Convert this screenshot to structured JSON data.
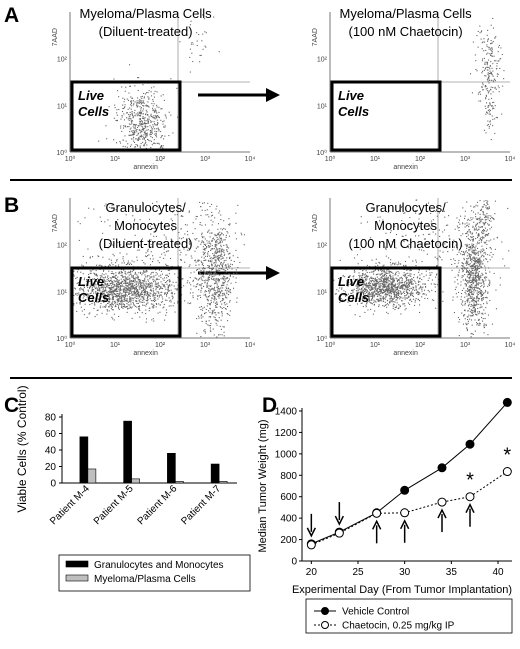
{
  "panels": {
    "A": {
      "label": "A"
    },
    "B": {
      "label": "B"
    },
    "C": {
      "label": "C"
    },
    "D": {
      "label": "D"
    }
  },
  "flow": {
    "gate_label_1": "Live",
    "gate_label_2": "Cells",
    "x_axis_label": "annexin",
    "y_axis_label": "7AAD",
    "x_ticks": [
      "10⁰",
      "10¹",
      "10²",
      "10³",
      "10⁴"
    ],
    "y_ticks": [
      "10⁰",
      "10¹",
      "10²"
    ],
    "plots": [
      {
        "id": "A-left",
        "title1": "Myeloma/Plasma Cells",
        "title2": "(Diluent-treated)"
      },
      {
        "id": "A-right",
        "title1": "Myeloma/Plasma Cells",
        "title2": "(100 nM Chaetocin)"
      },
      {
        "id": "B-left",
        "title1": "Granulocytes/",
        "title2": "Monocytes",
        "title3": "(Diluent-treated)"
      },
      {
        "id": "B-right",
        "title1": "Granulocytes/",
        "title2": "Monocytes",
        "title3": "(100 nM Chaetocin)"
      }
    ]
  },
  "chart_data": [
    {
      "type": "bar",
      "panel": "C",
      "categories": [
        "Patient M-4",
        "Patient M-5",
        "Patient M-6",
        "Patient M-7"
      ],
      "series": [
        {
          "name": "Granulocytes and Monocytes",
          "values": [
            56,
            75,
            36,
            23
          ],
          "color": "#000000"
        },
        {
          "name": "Myeloma/Plasma Cells",
          "values": [
            17,
            5,
            2,
            2
          ],
          "color": "#bfbfbf"
        }
      ],
      "ylabel": "Viable Cells (% Control)",
      "ylim": [
        0,
        80
      ],
      "yticks": [
        0,
        20,
        40,
        60,
        80
      ],
      "legend": "bottom"
    },
    {
      "type": "line",
      "panel": "D",
      "series": [
        {
          "name": "Vehicle Control",
          "x": [
            20,
            23,
            27,
            30,
            34,
            37,
            41
          ],
          "y": [
            160,
            270,
            450,
            660,
            870,
            1090,
            1480
          ],
          "marker": "filled-circle",
          "line": "solid"
        },
        {
          "name": "Chaetocin, 0.25 mg/kg IP",
          "x": [
            20,
            23,
            27,
            30,
            34,
            37,
            41
          ],
          "y": [
            150,
            260,
            445,
            450,
            550,
            600,
            835
          ],
          "marker": "open-circle",
          "line": "dotted"
        }
      ],
      "xlabel": "Experimental Day (From Tumor Implantation)",
      "ylabel": "Median Tumor Weight (mg)",
      "xlim": [
        19,
        41.5
      ],
      "ylim": [
        0,
        1400
      ],
      "xticks": [
        20,
        25,
        30,
        35,
        40
      ],
      "yticks": [
        0,
        200,
        400,
        600,
        800,
        1000,
        1200,
        1400
      ],
      "arrows_down_days": [
        20,
        23
      ],
      "arrows_up_days": [
        27,
        30,
        34,
        37
      ],
      "significance": [
        {
          "x": 37,
          "label": "*"
        },
        {
          "x": 41,
          "label": "*"
        }
      ],
      "legend": "bottom"
    }
  ]
}
